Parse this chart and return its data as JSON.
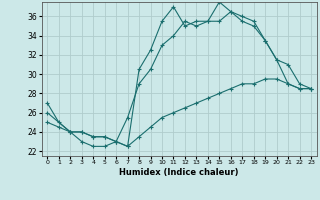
{
  "xlabel": "Humidex (Indice chaleur)",
  "background_color": "#cce8e8",
  "grid_color": "#b0cccc",
  "line_color": "#1a6e6e",
  "xlim": [
    -0.5,
    23.5
  ],
  "ylim": [
    21.5,
    37.5
  ],
  "xticks": [
    0,
    1,
    2,
    3,
    4,
    5,
    6,
    7,
    8,
    9,
    10,
    11,
    12,
    13,
    14,
    15,
    16,
    17,
    18,
    19,
    20,
    21,
    22,
    23
  ],
  "yticks": [
    22,
    24,
    26,
    28,
    30,
    32,
    34,
    36
  ],
  "line1_x": [
    0,
    1,
    2,
    3,
    4,
    5,
    6,
    7,
    8,
    9,
    10,
    11,
    12,
    13,
    14,
    15,
    16,
    17,
    18,
    19,
    20,
    21,
    22,
    23
  ],
  "line1_y": [
    27,
    25,
    24,
    23,
    22.5,
    22.5,
    23,
    22.5,
    30.5,
    32.5,
    35.5,
    37,
    35,
    35.5,
    35.5,
    37.5,
    36.5,
    36,
    35.5,
    33.5,
    31.5,
    29,
    28.5,
    28.5
  ],
  "line2_x": [
    0,
    2,
    3,
    4,
    5,
    6,
    7,
    8,
    9,
    10,
    11,
    12,
    13,
    14,
    15,
    16,
    17,
    18,
    19,
    20,
    21,
    22,
    23
  ],
  "line2_y": [
    26,
    24,
    24,
    23.5,
    23.5,
    23,
    25.5,
    29,
    30.5,
    33,
    34,
    35.5,
    35,
    35.5,
    35.5,
    36.5,
    35.5,
    35,
    33.5,
    31.5,
    31,
    29,
    28.5
  ],
  "line3_x": [
    0,
    1,
    2,
    3,
    4,
    5,
    6,
    7,
    8,
    9,
    10,
    11,
    12,
    13,
    14,
    15,
    16,
    17,
    18,
    19,
    20,
    21,
    22,
    23
  ],
  "line3_y": [
    25,
    24.5,
    24,
    24,
    23.5,
    23.5,
    23,
    22.5,
    23.5,
    24.5,
    25.5,
    26,
    26.5,
    27,
    27.5,
    28,
    28.5,
    29,
    29,
    29.5,
    29.5,
    29,
    28.5,
    28.5
  ]
}
